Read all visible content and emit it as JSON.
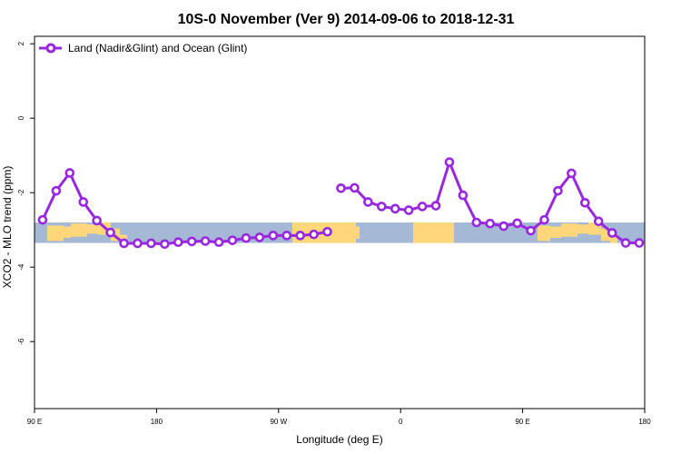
{
  "chart_data": {
    "type": "line",
    "title": "10S-0 November (Ver 9)   2014-09-06 to 2018-12-31",
    "xlabel": "Longitude (deg E)",
    "ylabel": "XCO2 - MLO trend (ppm)",
    "xlim": [
      90,
      540
    ],
    "ylim": [
      -7.8,
      2.2
    ],
    "x_ticks": [
      {
        "value": 90,
        "label": "90 E"
      },
      {
        "value": 180,
        "label": "180"
      },
      {
        "value": 270,
        "label": "90 W"
      },
      {
        "value": 360,
        "label": "0"
      },
      {
        "value": 450,
        "label": "90 E"
      },
      {
        "value": 540,
        "label": "180"
      }
    ],
    "y_ticks": [
      {
        "value": 2,
        "label": "2"
      },
      {
        "value": 0,
        "label": "0"
      },
      {
        "value": -2,
        "label": "-2"
      },
      {
        "value": -4,
        "label": "-4"
      },
      {
        "value": -6,
        "label": "-6"
      }
    ],
    "legend": {
      "position": "top-left"
    },
    "map_band": {
      "y_top": -2.8,
      "y_bottom": -3.35,
      "ocean_color": "#a5b8d6",
      "land_color": "#fed77a"
    },
    "series": [
      {
        "name": "Land (Nadir&Glint) and Ocean (Glint)",
        "color": "#9a27e0",
        "segments": [
          {
            "x": [
              96,
              106,
              116,
              126,
              136,
              146,
              156,
              166,
              176,
              186,
              196,
              206,
              216,
              226,
              236,
              246,
              256,
              266,
              276,
              286,
              296,
              306
            ],
            "y": [
              -2.73,
              -1.95,
              -1.47,
              -2.25,
              -2.75,
              -3.07,
              -3.36,
              -3.36,
              -3.36,
              -3.38,
              -3.33,
              -3.31,
              -3.3,
              -3.33,
              -3.28,
              -3.22,
              -3.2,
              -3.15,
              -3.15,
              -3.15,
              -3.12,
              -3.05
            ]
          },
          {
            "x": [
              316,
              326,
              336,
              346,
              356,
              366,
              376,
              386,
              396,
              406,
              416,
              426,
              436,
              446,
              456,
              466,
              476,
              486,
              496,
              506,
              516,
              526,
              536
            ],
            "y": [
              -1.88,
              -1.87,
              -2.25,
              -2.37,
              -2.43,
              -2.47,
              -2.37,
              -2.35,
              -1.18,
              -2.07,
              -2.8,
              -2.83,
              -2.9,
              -2.82,
              -3.02,
              -2.73,
              -1.95,
              -1.48,
              -2.27,
              -2.77,
              -3.08,
              -3.35,
              -3.35
            ]
          }
        ]
      }
    ]
  }
}
